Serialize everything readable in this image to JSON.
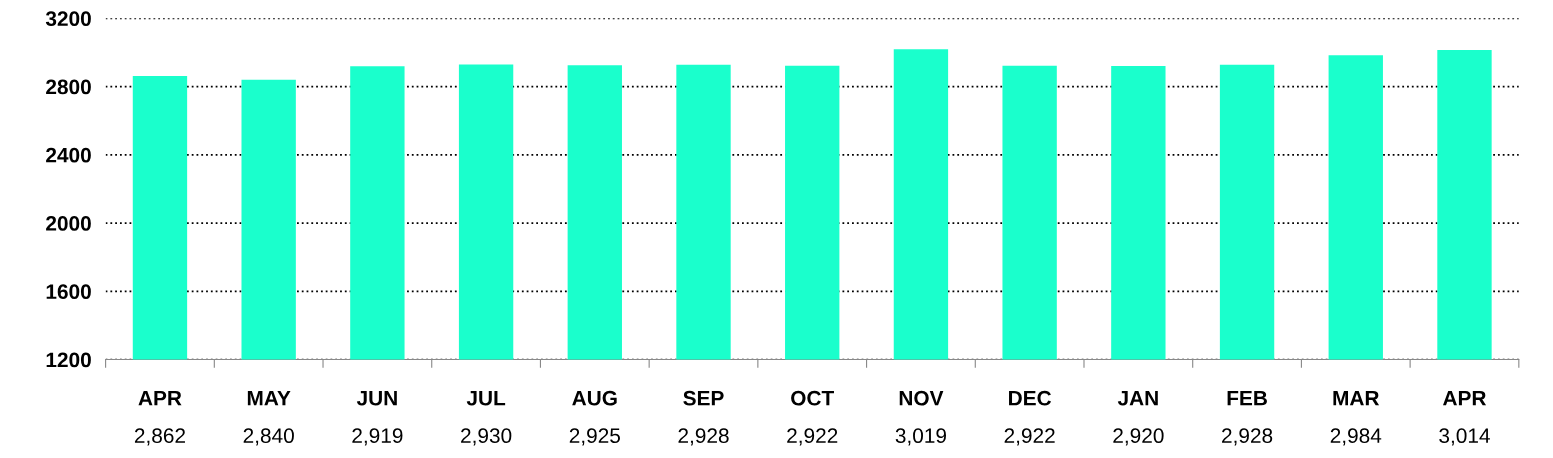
{
  "chart_data": {
    "type": "bar",
    "categories": [
      "APR",
      "MAY",
      "JUN",
      "JUL",
      "AUG",
      "SEP",
      "OCT",
      "NOV",
      "DEC",
      "JAN",
      "FEB",
      "MAR",
      "APR"
    ],
    "values": [
      2862,
      2840,
      2919,
      2930,
      2925,
      2928,
      2922,
      3019,
      2922,
      2920,
      2928,
      2984,
      3014
    ],
    "value_labels": [
      "2,862",
      "2,840",
      "2,919",
      "2,930",
      "2,925",
      "2,928",
      "2,922",
      "3,019",
      "2,922",
      "2,920",
      "2,928",
      "2,984",
      "3,014"
    ],
    "color": "#1affcc",
    "ylim": [
      1200,
      3200
    ],
    "yticks": [
      1200,
      1600,
      2000,
      2400,
      2800,
      3200
    ],
    "grid": "y"
  }
}
